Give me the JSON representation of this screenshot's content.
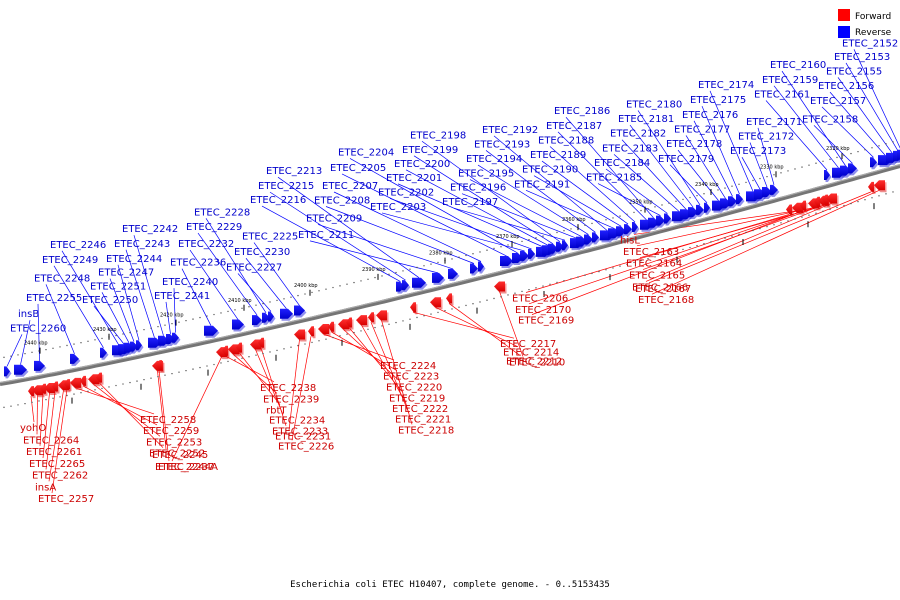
{
  "legend": {
    "forward": {
      "label": "Forward",
      "color": "#ff0000"
    },
    "reverse": {
      "label": "Reverse",
      "color": "#0000ff"
    }
  },
  "colors": {
    "forward_text": "#cc0000",
    "reverse_text": "#0000cc",
    "backbone": "#666666"
  },
  "caption": "Escherichia coli ETEC H10407, complete genome. - 0..5153435",
  "scale_labels": [
    "2440 kbp",
    "2430 kbp",
    "2420 kbp",
    "2410 kbp",
    "2400 kbp",
    "2390 kbp",
    "2380 kbp",
    "2370 kbp",
    "2360 kbp",
    "2350 kbp",
    "2340 kbp",
    "2330 kbp",
    "2320 kbp"
  ],
  "reverse_genes": [
    "ETEC_2260",
    "insB",
    "ETEC_2255",
    "ETEC_2248",
    "ETEC_2249",
    "ETEC_2246",
    "ETEC_2250",
    "ETEC_2251",
    "ETEC_2247",
    "ETEC_2244",
    "ETEC_2243",
    "ETEC_2242",
    "ETEC_2241",
    "ETEC_2240",
    "ETEC_2236",
    "ETEC_2232",
    "ETEC_2229",
    "ETEC_2228",
    "ETEC_2227",
    "ETEC_2230",
    "ETEC_2225",
    "ETEC_2216",
    "ETEC_2215",
    "ETEC_2213",
    "ETEC_2211",
    "ETEC_2209",
    "ETEC_2208",
    "ETEC_2207",
    "ETEC_2205",
    "ETEC_2204",
    "ETEC_2203",
    "ETEC_2202",
    "ETEC_2201",
    "ETEC_2200",
    "ETEC_2199",
    "ETEC_2198",
    "ETEC_2197",
    "ETEC_2196",
    "ETEC_2195",
    "ETEC_2194",
    "ETEC_2193",
    "ETEC_2192",
    "ETEC_2191",
    "ETEC_2190",
    "ETEC_2189",
    "ETEC_2188",
    "ETEC_2187",
    "ETEC_2186",
    "ETEC_2185",
    "ETEC_2184",
    "ETEC_2183",
    "ETEC_2182",
    "ETEC_2181",
    "ETEC_2180",
    "ETEC_2179",
    "ETEC_2178",
    "ETEC_2177",
    "ETEC_2176",
    "ETEC_2175",
    "ETEC_2174",
    "ETEC_2173",
    "ETEC_2172",
    "ETEC_2171",
    "ETEC_2161",
    "ETEC_2159",
    "ETEC_2160",
    "ETEC_2158",
    "ETEC_2157",
    "ETEC_2156",
    "ETEC_2155",
    "ETEC_2153",
    "ETEC_2152"
  ],
  "forward_genes": [
    "yohO",
    "ETEC_2264",
    "ETEC_2261",
    "ETEC_2265",
    "ETEC_2262",
    "insA",
    "ETEC_2257",
    "ETEC_2258",
    "ETEC_2259",
    "ETEC_2253",
    "ETEC_2252",
    "ETEC_2245",
    "ETEC_2244A",
    "ETEC_2237",
    "ETEC_2238",
    "ETEC_2239",
    "rbtT",
    "ETEC_2234",
    "ETEC_2233",
    "ETEC_2231",
    "ETEC_2226",
    "ETEC_2224",
    "ETEC_2223",
    "ETEC_2220",
    "ETEC_2219",
    "ETEC_2222",
    "ETEC_2221",
    "ETEC_2218",
    "ETEC_2217",
    "ETEC_2214",
    "ETEC_2212",
    "ETEC_2210",
    "ETEC_2206",
    "ETEC_2170",
    "ETEC_2169",
    "hisL",
    "ETEC_2163",
    "ETEC_2164",
    "ETEC_2165",
    "ETEC_2166",
    "ETEC_2167",
    "ETEC_2168"
  ]
}
